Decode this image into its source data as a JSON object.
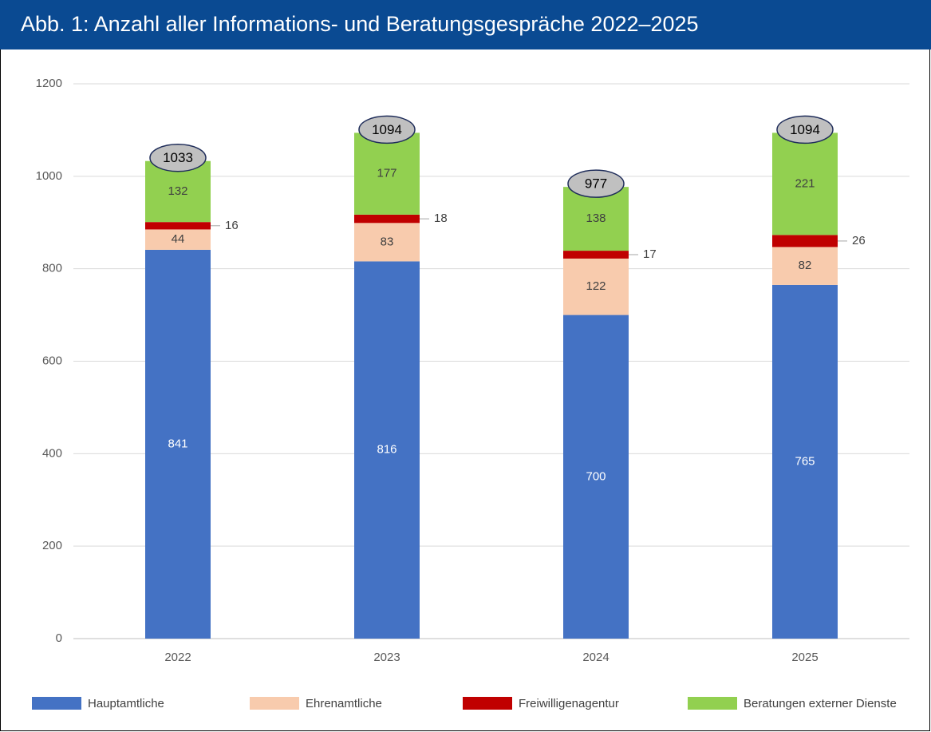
{
  "chart_data": {
    "type": "stacked_bar",
    "title": "Abb. 1: Anzahl aller Informations- und Beratungsgespräche 2022–2025",
    "categories": [
      "2022",
      "2023",
      "2024",
      "2025"
    ],
    "series": [
      {
        "name": "Hauptamtliche",
        "color": "#4472c4",
        "values": [
          841,
          816,
          700,
          765
        ]
      },
      {
        "name": "Ehrenamtliche",
        "color": "#f8cbad",
        "values": [
          44,
          83,
          122,
          82
        ]
      },
      {
        "name": "Freiwilligenagentur",
        "color": "#c00000",
        "values": [
          16,
          18,
          17,
          26
        ]
      },
      {
        "name": "Beratungen externer Dienste",
        "color": "#92d050",
        "values": [
          132,
          177,
          138,
          221
        ]
      }
    ],
    "totals": [
      1033,
      1094,
      977,
      1094
    ],
    "ylim": [
      0,
      1200
    ],
    "yticks": [
      0,
      200,
      400,
      600,
      800,
      1000,
      1200
    ],
    "grid": true,
    "legend": "bottom"
  }
}
